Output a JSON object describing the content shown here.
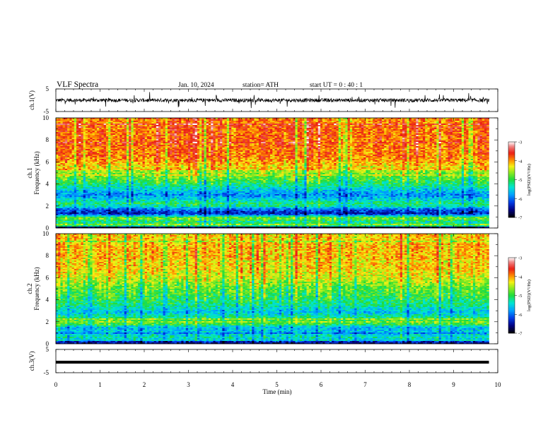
{
  "header": {
    "title": "VLF  Spectra",
    "date": "Jan.  10,  2024",
    "station": "station= ATH",
    "start_ut": "start  UT  =    0  : 40 : 1"
  },
  "chart_data": [
    {
      "type": "line",
      "panel": "ch1-waveform",
      "ylabel": "ch.1(V)",
      "ylim": [
        -5,
        5
      ],
      "yticks": [
        "5",
        "-5"
      ],
      "xlim": [
        0,
        10
      ],
      "x_end": 9.8,
      "color": "#000000",
      "baseline": 0
    },
    {
      "type": "heatmap",
      "panel": "ch1-spectrogram",
      "ylabel": "ch.1\nFrequency (kHz)",
      "ylim": [
        0,
        10
      ],
      "yticks": [
        "0",
        "2",
        "4",
        "6",
        "8",
        "10"
      ],
      "xlim": [
        0,
        10
      ],
      "x_end": 9.8,
      "colorbar": {
        "label": "log(PSD)(V²/Hz)",
        "min": -7,
        "max": -3,
        "ticks": [
          "-3",
          "-4",
          "-5",
          "-6",
          "-7"
        ]
      },
      "profile": [
        {
          "freq": 0.05,
          "level": -7.0
        },
        {
          "freq": 0.2,
          "level": -5.0
        },
        {
          "freq": 0.6,
          "level": -5.2
        },
        {
          "freq": 0.9,
          "level": -4.6
        },
        {
          "freq": 1.3,
          "level": -6.4
        },
        {
          "freq": 1.7,
          "level": -6.0
        },
        {
          "freq": 2.1,
          "level": -5.0
        },
        {
          "freq": 2.5,
          "level": -5.4
        },
        {
          "freq": 3.0,
          "level": -5.9
        },
        {
          "freq": 3.5,
          "level": -5.5
        },
        {
          "freq": 4.0,
          "level": -5.1
        },
        {
          "freq": 4.6,
          "level": -4.8
        },
        {
          "freq": 5.3,
          "level": -4.5
        },
        {
          "freq": 5.8,
          "level": -4.1
        },
        {
          "freq": 6.4,
          "level": -3.9
        },
        {
          "freq": 8.0,
          "level": -3.8
        },
        {
          "freq": 10.0,
          "level": -3.9
        }
      ]
    },
    {
      "type": "heatmap",
      "panel": "ch2-spectrogram",
      "ylabel": "ch.2\nFrequency (kHz)",
      "ylim": [
        0,
        10
      ],
      "yticks": [
        "0",
        "2",
        "4",
        "6",
        "8",
        "10"
      ],
      "xlim": [
        0,
        10
      ],
      "x_end": 9.8,
      "colorbar": {
        "label": "log(PSD)(V²/Hz)",
        "min": -7,
        "max": -3,
        "ticks": [
          "-3",
          "-4",
          "-5",
          "-6",
          "-7"
        ]
      },
      "profile": [
        {
          "freq": 0.05,
          "level": -6.8
        },
        {
          "freq": 0.5,
          "level": -5.3
        },
        {
          "freq": 1.0,
          "level": -5.6
        },
        {
          "freq": 1.5,
          "level": -5.6
        },
        {
          "freq": 2.0,
          "level": -4.6
        },
        {
          "freq": 2.4,
          "level": -5.2
        },
        {
          "freq": 2.9,
          "level": -5.6
        },
        {
          "freq": 3.5,
          "level": -5.2
        },
        {
          "freq": 4.2,
          "level": -5.0
        },
        {
          "freq": 5.0,
          "level": -4.8
        },
        {
          "freq": 6.0,
          "level": -4.4
        },
        {
          "freq": 7.0,
          "level": -4.2
        },
        {
          "freq": 8.5,
          "level": -4.1
        },
        {
          "freq": 10.0,
          "level": -4.2
        }
      ]
    },
    {
      "type": "line",
      "panel": "ch3-waveform",
      "ylabel": "ch.3(V)",
      "ylim": [
        -5,
        5
      ],
      "yticks": [
        "5",
        "-5"
      ],
      "xlim": [
        0,
        10
      ],
      "x_end": 9.8,
      "color": "#000000",
      "baseline": -0.5
    }
  ],
  "x_axis": {
    "label": "Time  (min)",
    "ticks": [
      "0",
      "1",
      "2",
      "3",
      "4",
      "5",
      "6",
      "7",
      "8",
      "9",
      "10"
    ]
  }
}
